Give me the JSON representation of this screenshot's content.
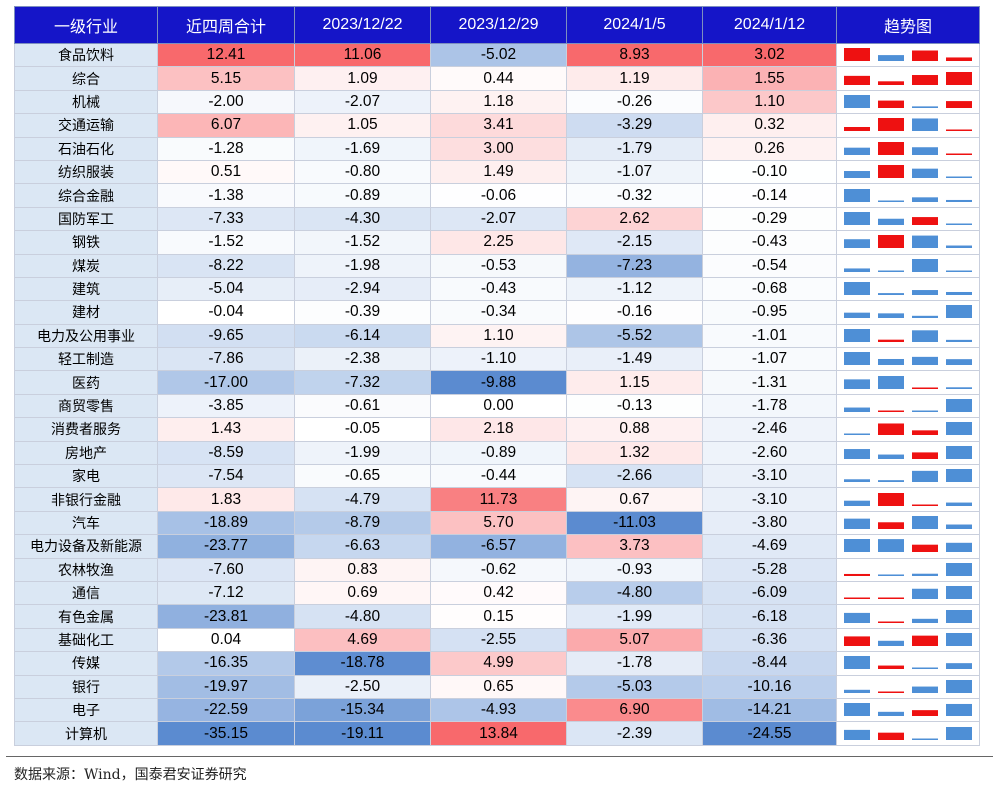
{
  "chart_data": {
    "type": "table",
    "columns": [
      "一级行业",
      "近四周合计",
      "2023/12/22",
      "2023/12/29",
      "2024/1/5",
      "2024/1/12",
      "趋势图"
    ],
    "rows": [
      {
        "name": "食品饮料",
        "values": [
          12.41,
          11.06,
          -5.02,
          8.93,
          3.02
        ]
      },
      {
        "name": "综合",
        "values": [
          5.15,
          1.09,
          0.44,
          1.19,
          1.55
        ]
      },
      {
        "name": "机械",
        "values": [
          -2.0,
          -2.07,
          1.18,
          -0.26,
          1.1
        ]
      },
      {
        "name": "交通运输",
        "values": [
          6.07,
          1.05,
          3.41,
          -3.29,
          0.32
        ]
      },
      {
        "name": "石油石化",
        "values": [
          -1.28,
          -1.69,
          3.0,
          -1.79,
          0.26
        ]
      },
      {
        "name": "纺织服装",
        "values": [
          0.51,
          -0.8,
          1.49,
          -1.07,
          -0.1
        ]
      },
      {
        "name": "综合金融",
        "values": [
          -1.38,
          -0.89,
          -0.06,
          -0.32,
          -0.14
        ]
      },
      {
        "name": "国防军工",
        "values": [
          -7.33,
          -4.3,
          -2.07,
          2.62,
          -0.29
        ]
      },
      {
        "name": "钢铁",
        "values": [
          -1.52,
          -1.52,
          2.25,
          -2.15,
          -0.43
        ]
      },
      {
        "name": "煤炭",
        "values": [
          -8.22,
          -1.98,
          -0.53,
          -7.23,
          -0.54
        ]
      },
      {
        "name": "建筑",
        "values": [
          -5.04,
          -2.94,
          -0.43,
          -1.12,
          -0.68
        ]
      },
      {
        "name": "建材",
        "values": [
          -0.04,
          -0.39,
          -0.34,
          -0.16,
          -0.95
        ]
      },
      {
        "name": "电力及公用事业",
        "values": [
          -9.65,
          -6.14,
          1.1,
          -5.52,
          -1.01
        ]
      },
      {
        "name": "轻工制造",
        "values": [
          -7.86,
          -2.38,
          -1.1,
          -1.49,
          -1.07
        ]
      },
      {
        "name": "医药",
        "values": [
          -17.0,
          -7.32,
          -9.88,
          1.15,
          -1.31
        ]
      },
      {
        "name": "商贸零售",
        "values": [
          -3.85,
          -0.61,
          0.0,
          -0.13,
          -1.78
        ]
      },
      {
        "name": "消费者服务",
        "values": [
          1.43,
          -0.05,
          2.18,
          0.88,
          -2.46
        ]
      },
      {
        "name": "房地产",
        "values": [
          -8.59,
          -1.99,
          -0.89,
          1.32,
          -2.6
        ]
      },
      {
        "name": "家电",
        "values": [
          -7.54,
          -0.65,
          -0.44,
          -2.66,
          -3.1
        ]
      },
      {
        "name": "非银行金融",
        "values": [
          1.83,
          -4.79,
          11.73,
          0.67,
          -3.1
        ]
      },
      {
        "name": "汽车",
        "values": [
          -18.89,
          -8.79,
          5.7,
          -11.03,
          -3.8
        ]
      },
      {
        "name": "电力设备及新能源",
        "values": [
          -23.77,
          -6.63,
          -6.57,
          3.73,
          -4.69
        ]
      },
      {
        "name": "农林牧渔",
        "values": [
          -7.6,
          0.83,
          -0.62,
          -0.93,
          -5.28
        ]
      },
      {
        "name": "通信",
        "values": [
          -7.12,
          0.69,
          0.42,
          -4.8,
          -6.09
        ]
      },
      {
        "name": "有色金属",
        "values": [
          -23.81,
          -4.8,
          0.15,
          -1.99,
          -6.18
        ]
      },
      {
        "name": "基础化工",
        "values": [
          0.04,
          4.69,
          -2.55,
          5.07,
          -6.36
        ]
      },
      {
        "name": "传媒",
        "values": [
          -16.35,
          -18.78,
          4.99,
          -1.78,
          -8.44
        ]
      },
      {
        "name": "银行",
        "values": [
          -19.97,
          -2.5,
          0.65,
          -5.03,
          -10.16
        ]
      },
      {
        "name": "电子",
        "values": [
          -22.59,
          -15.34,
          -4.93,
          6.9,
          -14.21
        ]
      },
      {
        "name": "计算机",
        "values": [
          -35.15,
          -19.11,
          13.84,
          -2.39,
          -24.55
        ]
      }
    ]
  },
  "colors": {
    "header_bg": "#1515c8",
    "name_bg": "#dbe7f4",
    "positive": "#f87171",
    "negative": "#5b8bd0",
    "trend_up": "#ee1111",
    "trend_down": "#4e8fd6"
  },
  "source": "数据来源：Wind，国泰君安证券研究"
}
